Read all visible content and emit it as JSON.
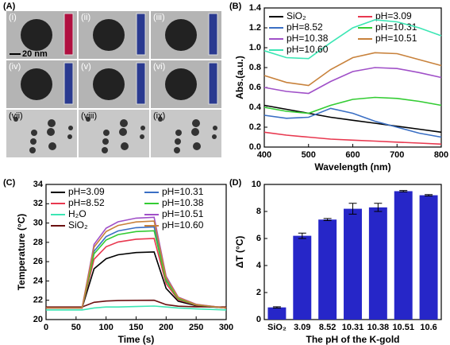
{
  "panel_a": {
    "label": "(A)",
    "images": [
      "(i)",
      "(ii)",
      "(iii)",
      "(iv)",
      "(v)",
      "(vi)",
      "(vii)",
      "(viii)",
      "(ix)"
    ],
    "scale_bar": "20 nm"
  },
  "chart_data": [
    {
      "type": "line",
      "panel_label": "(B)",
      "xlabel": "Wavelength (nm)",
      "ylabel": "Abs.(a.u.)",
      "x": [
        400,
        450,
        500,
        550,
        600,
        650,
        700,
        750,
        800
      ],
      "xlim": [
        400,
        800
      ],
      "xticks": [
        400,
        500,
        600,
        700,
        800
      ],
      "ylim": [
        0,
        1.4
      ],
      "yticks": [
        {
          "value": 0,
          "label": "0.0"
        },
        {
          "value": 0.2,
          "label": "0.2"
        },
        {
          "value": 0.4,
          "label": "0.4"
        },
        {
          "value": 0.6,
          "label": "0.6"
        },
        {
          "value": 0.8,
          "label": "0.8"
        },
        {
          "value": 1.0,
          "label": "1.0"
        },
        {
          "value": 1.2,
          "label": "1.2"
        },
        {
          "value": 1.4,
          "label": "1.4"
        }
      ],
      "series": [
        {
          "name": "SiO₂",
          "color": "#000000",
          "values": [
            0.42,
            0.38,
            0.34,
            0.3,
            0.27,
            0.24,
            0.21,
            0.18,
            0.15
          ]
        },
        {
          "name": "pH=3.09",
          "color": "#e8384f",
          "values": [
            0.15,
            0.12,
            0.1,
            0.08,
            0.07,
            0.06,
            0.05,
            0.04,
            0.03
          ]
        },
        {
          "name": "pH=8.52",
          "color": "#3a6fc4",
          "values": [
            0.32,
            0.29,
            0.3,
            0.39,
            0.34,
            0.26,
            0.2,
            0.14,
            0.1
          ]
        },
        {
          "name": "pH=10.31",
          "color": "#33cc33",
          "values": [
            0.4,
            0.36,
            0.34,
            0.42,
            0.48,
            0.5,
            0.49,
            0.46,
            0.42
          ]
        },
        {
          "name": "pH=10.38",
          "color": "#a050c8",
          "values": [
            0.6,
            0.56,
            0.54,
            0.66,
            0.76,
            0.8,
            0.79,
            0.75,
            0.7
          ]
        },
        {
          "name": "pH=10.51",
          "color": "#c8823c",
          "values": [
            0.72,
            0.65,
            0.62,
            0.78,
            0.9,
            0.95,
            0.94,
            0.88,
            0.82
          ]
        },
        {
          "name": "pH=10.60",
          "color": "#3ce6b4",
          "values": [
            0.97,
            0.9,
            0.89,
            1.05,
            1.2,
            1.28,
            1.26,
            1.2,
            1.12
          ]
        }
      ]
    },
    {
      "type": "line",
      "panel_label": "(C)",
      "xlabel": "Time (s)",
      "ylabel": "Temperature (°C)",
      "x": [
        0,
        60,
        80,
        100,
        120,
        150,
        180,
        200,
        220,
        250,
        300
      ],
      "xlim": [
        0,
        300
      ],
      "xticks": [
        0,
        50,
        100,
        150,
        200,
        250,
        300
      ],
      "ylim": [
        20,
        34
      ],
      "yticks": [
        20,
        22,
        24,
        26,
        28,
        30,
        32,
        34
      ],
      "series": [
        {
          "name": "pH=3.09",
          "color": "#000000",
          "values": [
            21.2,
            21.2,
            25.26,
            26.3,
            26.71,
            26.94,
            27.0,
            23.23,
            21.9,
            21.43,
            21.2
          ]
        },
        {
          "name": "pH=8.52",
          "color": "#e8384f",
          "values": [
            21.2,
            21.2,
            26.24,
            27.54,
            28.04,
            28.33,
            28.4,
            23.72,
            22.06,
            21.49,
            21.2
          ]
        },
        {
          "name": "H₂O",
          "color": "#3ce6b4",
          "values": [
            21.0,
            21.0,
            21.2,
            21.3,
            21.3,
            21.35,
            21.4,
            21.3,
            21.2,
            21.1,
            21.0
          ]
        },
        {
          "name": "SiO₂",
          "color": "#6b1010",
          "values": [
            21.3,
            21.3,
            21.79,
            21.92,
            21.97,
            21.99,
            22.0,
            21.55,
            21.38,
            21.33,
            21.3
          ]
        },
        {
          "name": "pH=10.31",
          "color": "#3a6fc4",
          "values": [
            21.2,
            21.2,
            27.08,
            28.59,
            29.18,
            29.52,
            29.6,
            24.14,
            22.21,
            21.54,
            21.2
          ]
        },
        {
          "name": "pH=10.38",
          "color": "#33cc33",
          "values": [
            21.2,
            21.2,
            26.8,
            28.24,
            28.8,
            29.12,
            29.2,
            24.0,
            22.16,
            21.52,
            21.2
          ]
        },
        {
          "name": "pH=10.51",
          "color": "#a050c8",
          "values": [
            21.2,
            21.2,
            27.78,
            29.47,
            30.13,
            30.51,
            30.6,
            24.49,
            22.33,
            21.58,
            21.2
          ]
        },
        {
          "name": "pH=10.60",
          "color": "#c8823c",
          "values": [
            21.2,
            21.2,
            27.5,
            29.12,
            29.75,
            30.11,
            30.2,
            24.35,
            22.28,
            21.56,
            21.2
          ]
        }
      ]
    },
    {
      "type": "bar",
      "panel_label": "(D)",
      "xlabel": "The pH of the K-gold",
      "ylabel": "ΔT (°C)",
      "categories": [
        "SiO₂",
        "3.09",
        "8.52",
        "10.31",
        "10.38",
        "10.51",
        "10.6"
      ],
      "values": [
        0.9,
        6.2,
        7.4,
        8.2,
        8.3,
        9.5,
        9.2
      ],
      "errors": [
        0.05,
        0.2,
        0.08,
        0.4,
        0.3,
        0.05,
        0.05
      ],
      "color": "#2626c8",
      "ylim": [
        0,
        10
      ],
      "yticks": [
        0,
        2,
        4,
        6,
        8,
        10
      ]
    }
  ]
}
